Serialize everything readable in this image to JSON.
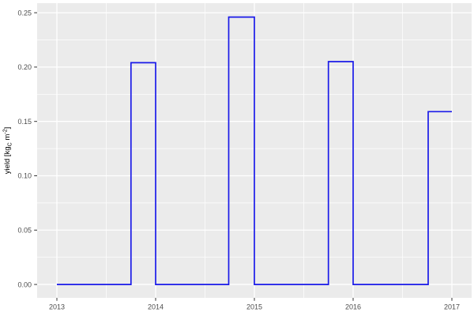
{
  "figure": {
    "background": "#ffffff"
  },
  "chart_data": {
    "type": "line",
    "subtype": "step",
    "title": "",
    "xlabel": "",
    "ylabel": "yield [kg_C m^-2]",
    "ylabel_parts": {
      "prefix": "yield [kg",
      "subscript": "C",
      "middle": "m",
      "superscript": "-2",
      "suffix": "]"
    },
    "x_ticks": [
      "2013",
      "2014",
      "2015",
      "2016",
      "2017"
    ],
    "x_minor_gridlines": [
      2013.5,
      2014.5,
      2015.5,
      2016.5
    ],
    "y_ticks": [
      "0.00",
      "0.05",
      "0.10",
      "0.15",
      "0.20",
      "0.25"
    ],
    "y_minor_gridlines": [
      0.025,
      0.075,
      0.125,
      0.175,
      0.225
    ],
    "xlim": [
      2012.8,
      2017.2
    ],
    "ylim": [
      -0.0123,
      0.2588
    ],
    "grid": true,
    "legend": "none",
    "series": [
      {
        "name": "yield",
        "color": "#1a1ae8",
        "points": [
          [
            2013.0,
            0
          ],
          [
            2013.75,
            0
          ],
          [
            2013.75,
            0.204
          ],
          [
            2014.0,
            0.204
          ],
          [
            2014.0,
            0
          ],
          [
            2014.74,
            0
          ],
          [
            2014.74,
            0.246
          ],
          [
            2015.0,
            0.246
          ],
          [
            2015.0,
            0
          ],
          [
            2015.75,
            0
          ],
          [
            2015.75,
            0.205
          ],
          [
            2016.0,
            0.205
          ],
          [
            2016.0,
            0
          ],
          [
            2016.76,
            0
          ],
          [
            2016.76,
            0.159
          ],
          [
            2017.0,
            0.159
          ]
        ]
      }
    ],
    "harvest_peaks": [
      {
        "year": 2013,
        "value": 0.204
      },
      {
        "year": 2014,
        "value": 0.246
      },
      {
        "year": 2015,
        "value": 0.205
      },
      {
        "year": 2016,
        "value": 0.159
      }
    ],
    "colors": {
      "panel_background": "#ebebeb",
      "gridline": "#ffffff",
      "tick_label": "#4d4d4d",
      "axis_title": "#000000",
      "tick_mark": "#333333",
      "line": "#1a1ae8"
    }
  }
}
